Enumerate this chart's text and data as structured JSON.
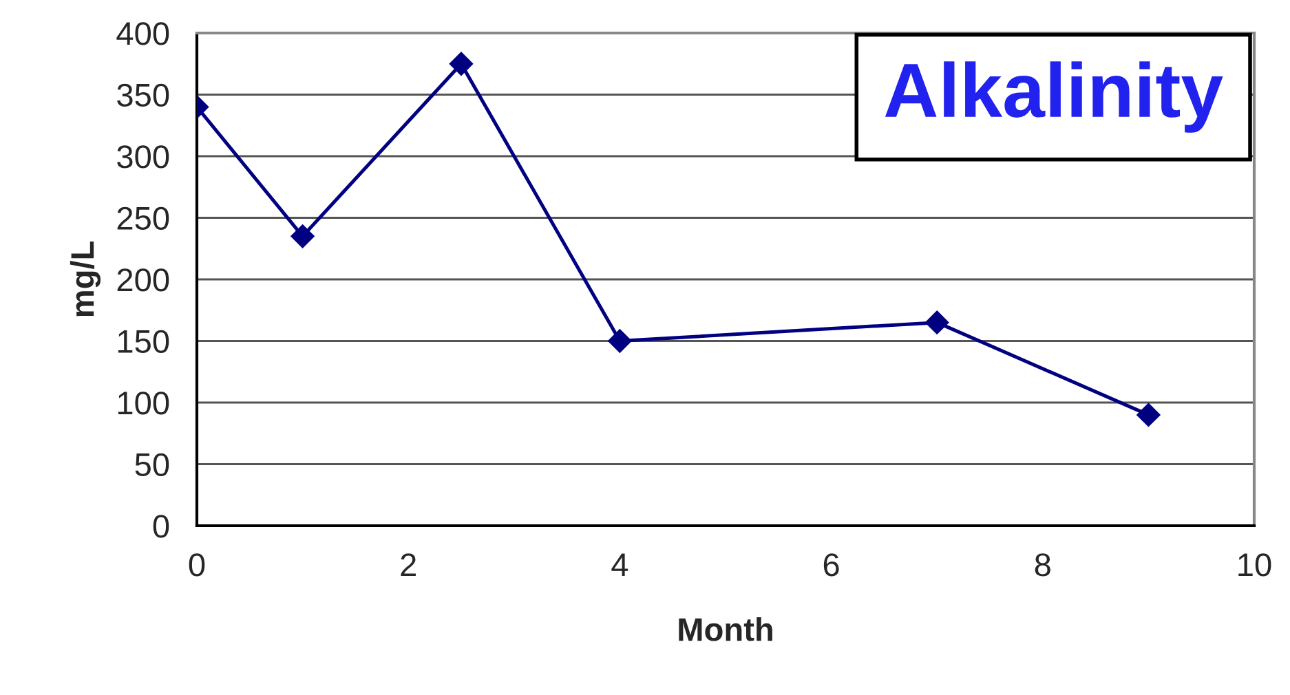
{
  "chart_data": {
    "type": "line",
    "title": "Alkalinity",
    "xlabel": "Month",
    "ylabel": "mg/L",
    "x": [
      0,
      1,
      2.5,
      4,
      7,
      9
    ],
    "series": [
      {
        "color": "#000080",
        "values": [
          340,
          235,
          375,
          150,
          165,
          90
        ]
      }
    ],
    "xlim": [
      0,
      10
    ],
    "xticks": [
      0,
      2,
      4,
      6,
      8,
      10
    ],
    "ylim": [
      0,
      400
    ],
    "yticks": [
      0,
      50,
      100,
      150,
      200,
      250,
      300,
      350,
      400
    ],
    "grid": "y",
    "marker": "diamond",
    "line_style": "solid"
  }
}
